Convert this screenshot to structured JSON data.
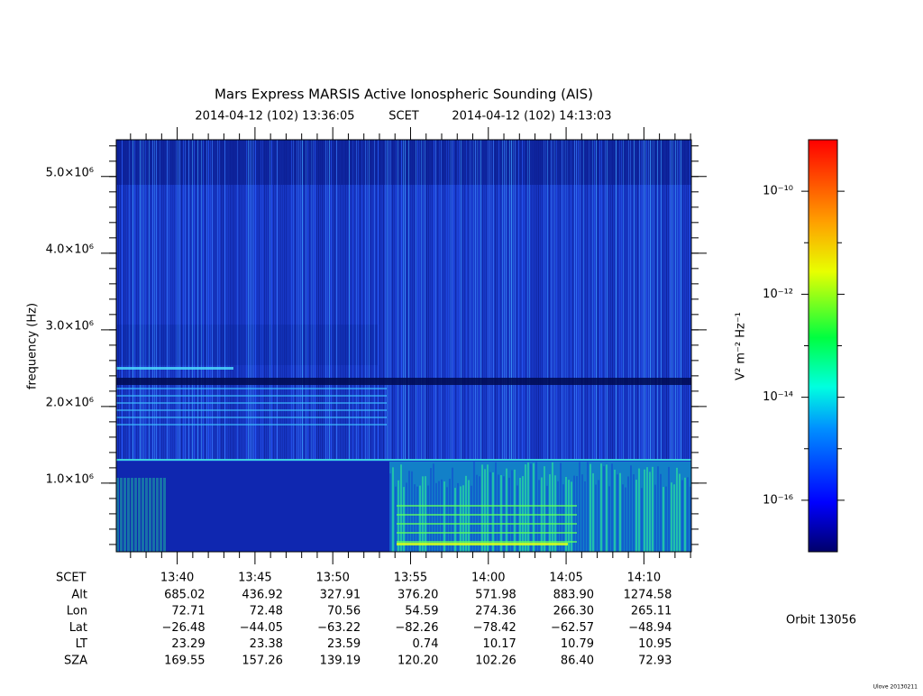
{
  "chart_data": {
    "type": "spectrogram",
    "title": "Mars Express MARSIS Active Ionospheric Sounding (AIS)",
    "start_time": "2014-04-12 (102) 13:36:05",
    "time_label": "SCET",
    "end_time": "2014-04-12 (102) 14:13:03",
    "y_label": "frequency (Hz)",
    "ylim": [
      105000,
      5480000
    ],
    "yticks": [
      {
        "value": 1000000,
        "label": "1.0×10⁶"
      },
      {
        "value": 2000000,
        "label": "2.0×10⁶"
      },
      {
        "value": 3000000,
        "label": "3.0×10⁶"
      },
      {
        "value": 4000000,
        "label": "4.0×10⁶"
      },
      {
        "value": 5000000,
        "label": "5.0×10⁶"
      }
    ],
    "xticks": [
      "13:40",
      "13:45",
      "13:50",
      "13:55",
      "14:00",
      "14:05",
      "14:10"
    ],
    "ephemeris": [
      {
        "label": "Alt",
        "values": [
          "685.02",
          "436.92",
          "327.91",
          "376.20",
          "571.98",
          "883.90",
          "1274.58"
        ]
      },
      {
        "label": "Lon",
        "values": [
          "72.71",
          "72.48",
          "70.56",
          "54.59",
          "274.36",
          "266.30",
          "265.11"
        ]
      },
      {
        "label": "Lat",
        "values": [
          "−26.48",
          "−44.05",
          "−63.22",
          "−82.26",
          "−78.42",
          "−62.57",
          "−48.94"
        ]
      },
      {
        "label": "LT",
        "values": [
          "23.29",
          "23.38",
          "23.59",
          "0.74",
          "10.17",
          "10.79",
          "10.95"
        ]
      },
      {
        "label": "SZA",
        "values": [
          "169.55",
          "157.26",
          "139.19",
          "120.20",
          "102.26",
          "86.40",
          "72.93"
        ]
      }
    ],
    "colorbar_label": "V² m⁻² Hz⁻¹",
    "zscale": "log",
    "zlim": [
      1e-17,
      1e-09
    ],
    "zticks": [
      {
        "value": 1e-10,
        "label": "10⁻¹⁰"
      },
      {
        "value": 1e-12,
        "label": "10⁻¹²"
      },
      {
        "value": 1e-14,
        "label": "10⁻¹⁴"
      },
      {
        "value": 1e-16,
        "label": "10⁻¹⁶"
      }
    ],
    "orbit": "Orbit 13056",
    "footer": "Ulove 20130211"
  }
}
